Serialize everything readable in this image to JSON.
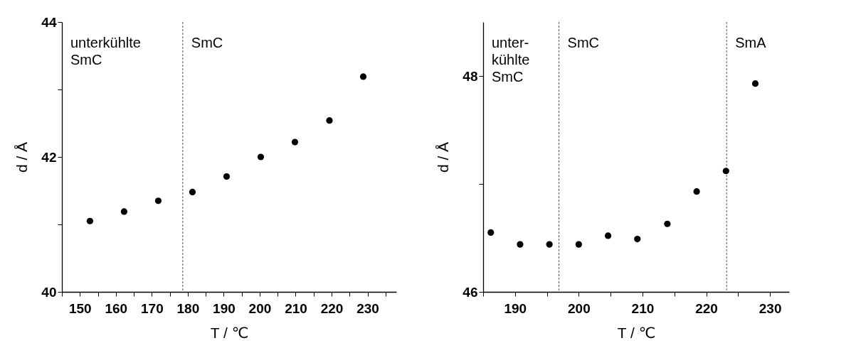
{
  "chart_data": [
    {
      "type": "scatter",
      "xlabel": "T / ℃",
      "ylabel": "d / Å",
      "marker": "circle",
      "grid": false,
      "x": [
        152.8,
        162.3,
        171.8,
        181.3,
        190.8,
        200.3,
        209.8,
        219.4,
        228.8
      ],
      "series": [
        {
          "color": "#000000",
          "values": [
            41.05,
            41.19,
            41.35,
            41.48,
            41.71,
            42.0,
            42.22,
            42.54,
            43.19
          ]
        }
      ],
      "xlim": [
        145,
        238
      ],
      "xticks": [
        {
          "value": 145,
          "label": null
        },
        150,
        {
          "value": 155,
          "label": null
        },
        160,
        {
          "value": 165,
          "label": null
        },
        170,
        {
          "value": 175,
          "label": null
        },
        180,
        {
          "value": 185,
          "label": null
        },
        190,
        {
          "value": 195,
          "label": null
        },
        200,
        {
          "value": 205,
          "label": null
        },
        210,
        {
          "value": 215,
          "label": null
        },
        220,
        {
          "value": 225,
          "label": null
        },
        230,
        {
          "value": 235,
          "label": null
        }
      ],
      "ylim": [
        40,
        44
      ],
      "yticks": [
        40,
        {
          "value": 41,
          "label": null
        },
        42,
        {
          "value": 43,
          "label": null
        },
        44
      ],
      "ref_lines": [
        {
          "axis": "x",
          "value": 178.6,
          "color": "#555555",
          "line_style": "dashed"
        }
      ],
      "annotations": [
        "unterkühlte\nSmC",
        "SmC"
      ]
    },
    {
      "type": "scatter",
      "xlabel": "T / ℃",
      "ylabel": "d / Å",
      "marker": "circle",
      "grid": false,
      "x": [
        186.2,
        190.8,
        195.4,
        200.0,
        204.6,
        209.2,
        213.9,
        218.5,
        223.1,
        227.7
      ],
      "series": [
        {
          "color": "#000000",
          "values": [
            46.55,
            46.44,
            46.44,
            46.44,
            46.52,
            46.49,
            46.63,
            46.93,
            47.12,
            47.93
          ]
        }
      ],
      "xlim": [
        185,
        233
      ],
      "xticks": [
        {
          "value": 185,
          "label": null
        },
        190,
        {
          "value": 195,
          "label": null
        },
        200,
        {
          "value": 205,
          "label": null
        },
        210,
        {
          "value": 215,
          "label": null
        },
        220,
        {
          "value": 225,
          "label": null
        },
        230
      ],
      "ylim": [
        46,
        48.5
      ],
      "yticks": [
        46,
        {
          "value": 47,
          "label": null
        },
        48
      ],
      "ref_lines": [
        {
          "axis": "x",
          "value": 196.9,
          "color": "#555555",
          "line_style": "dashed"
        },
        {
          "axis": "x",
          "value": 223.2,
          "color": "#555555",
          "line_style": "dashed"
        }
      ],
      "annotations": [
        "unter-\nkühlte\nSmC",
        "SmC",
        "SmA"
      ]
    }
  ]
}
